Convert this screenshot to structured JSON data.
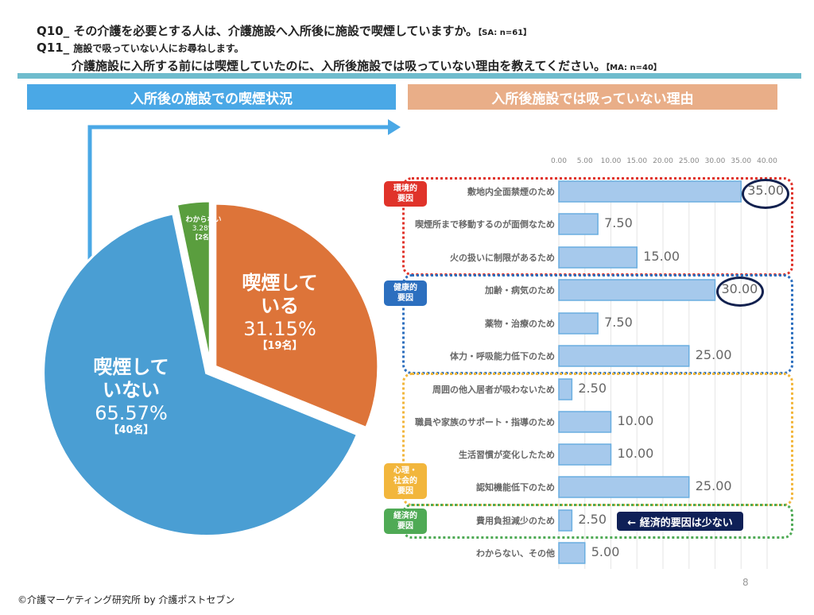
{
  "header": {
    "q10": "Q10_ その介護を必要とする人は、介護施設へ入所後に施設で喫煙していますか。",
    "q10_note": "【SA: n=61】",
    "q11_prefix": "Q11_",
    "q11_line1": "施設で吸っていない人にお尋ねします。",
    "q11_line2": "介護施設に入所する前には喫煙していたのに、入所後施設では吸っていない理由を教えてください。",
    "q11_note": "【MA: n=40】",
    "left_title": "入所後の施設での喫煙状況",
    "right_title": "入所後施設では吸っていない理由"
  },
  "colors": {
    "smoking": "#dd7439",
    "not_smoking": "#4a9ed3",
    "unknown": "#5a9e3e",
    "bar": "#a6c9ec",
    "env": "#e0332a",
    "health": "#2c6fbf",
    "social": "#f2b63c",
    "econ": "#4faa55"
  },
  "chart_data": [
    {
      "type": "pie",
      "title": "入所後の施設での喫煙状況",
      "slices": [
        {
          "label_1": "喫煙して",
          "label_2": "いる",
          "percent_label": "31.15%",
          "count_label": "【19名】",
          "value": 31.15,
          "color": "#dd7439"
        },
        {
          "label_1": "喫煙して",
          "label_2": "いない",
          "percent_label": "65.57%",
          "count_label": "【40名】",
          "value": 65.57,
          "color": "#4a9ed3"
        },
        {
          "label_1": "わからない",
          "label_2": "",
          "percent_label": "3.28%",
          "count_label": "【2名】",
          "value": 3.28,
          "color": "#5a9e3e"
        }
      ]
    },
    {
      "type": "bar",
      "orientation": "horizontal",
      "title": "入所後施設では吸っていない理由",
      "xlim": [
        0,
        40
      ],
      "ticks": [
        "0.00",
        "5.00",
        "10.00",
        "15.00",
        "20.00",
        "25.00",
        "30.00",
        "35.00",
        "40.00"
      ],
      "categories": [
        "敷地内全面禁煙のため",
        "喫煙所まで移動するのが面倒なため",
        "火の扱いに制限があるため",
        "加齢・病気のため",
        "薬物・治療のため",
        "体力・呼吸能力低下のため",
        "周囲の他入居者が吸わないため",
        "職員や家族のサポート・指導のため",
        "生活習慣が変化したため",
        "認知機能低下のため",
        "費用負担減少のため",
        "わからない、その他"
      ],
      "values": [
        35.0,
        7.5,
        15.0,
        30.0,
        7.5,
        25.0,
        2.5,
        10.0,
        10.0,
        25.0,
        2.5,
        5.0
      ],
      "value_labels": [
        "35.00",
        "7.50",
        "15.00",
        "30.00",
        "7.50",
        "25.00",
        "2.50",
        "10.00",
        "10.00",
        "25.00",
        "2.50",
        "5.00"
      ],
      "groups": [
        {
          "label": "環境的要因",
          "lines": [
            "環境的",
            "要因"
          ]
        },
        {
          "label": "健康的要因",
          "lines": [
            "健康的",
            "要因"
          ]
        },
        {
          "label": "心理・社会的要因",
          "lines": [
            "心理・",
            "社会的",
            "要因"
          ]
        },
        {
          "label": "経済的要因",
          "lines": [
            "経済的",
            "要因"
          ]
        }
      ],
      "annotation": "← 経済的要因は少ない"
    }
  ],
  "footer": {
    "page_number": "8",
    "copyright": "©介護マーケティング研究所 by 介護ポストセブン"
  }
}
